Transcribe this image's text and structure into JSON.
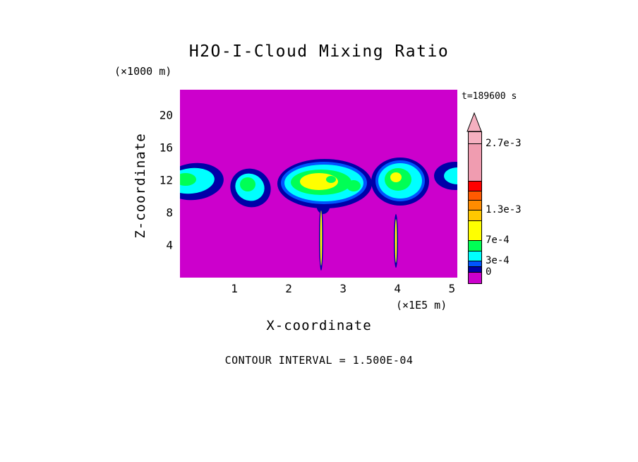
{
  "chart_data": {
    "type": "contour",
    "title": "H2O-I-Cloud Mixing Ratio",
    "time_label": "t=189600 s",
    "xlabel": "X-coordinate",
    "x_units": "(×1E5 m)",
    "ylabel": "Z-coordinate",
    "y_units": "(×1000 m)",
    "contour_interval_label": "CONTOUR INTERVAL = 1.500E-04",
    "xlim": [
      0,
      5.1
    ],
    "ylim": [
      0,
      23.1
    ],
    "x_ticks": [
      1,
      2,
      3,
      4,
      5
    ],
    "y_ticks": [
      20,
      16,
      12,
      8,
      4
    ],
    "grid": false,
    "legend_position": "right-colorbar",
    "description": "Filled contour field of cloud mixing ratio; magenta background is zero value; cloud band centered near z = 12 (x1000 m) spanning full x range, with thin precipitation streaks descending near x = 2.6 and x = 4.0 (x1E5 m)",
    "colors": {
      "background_zero": "#CC00CC",
      "navy": "#0000A8",
      "blue": "#0055FF",
      "cyan": "#00FFFF",
      "green": "#00FF55",
      "yellow": "#FFFF00",
      "pink_light": "#F5B0C0",
      "pink": "#F09CB0",
      "red": "#FF0000",
      "orange_red": "#FF5A00",
      "orange": "#FF8C00",
      "amber": "#FFC800"
    },
    "colorbar": {
      "segments": [
        {
          "color": "#F5B0C0",
          "h": 17
        },
        {
          "color": "#F09CB0",
          "h": 53
        },
        {
          "color": "#FF0000",
          "h": 14
        },
        {
          "color": "#FF5A00",
          "h": 13
        },
        {
          "color": "#FF8C00",
          "h": 14
        },
        {
          "color": "#FFC800",
          "h": 15
        },
        {
          "color": "#FFFF00",
          "h": 28
        },
        {
          "color": "#00FF55",
          "h": 15
        },
        {
          "color": "#00FFFF",
          "h": 14
        },
        {
          "color": "#0055FF",
          "h": 8
        },
        {
          "color": "#0000A8",
          "h": 8
        },
        {
          "color": "#CC00CC",
          "h": 15
        }
      ],
      "labels": [
        {
          "text": "2.7e-3",
          "after_segment": 1
        },
        {
          "text": "1.3e-3",
          "after_segment": 5
        },
        {
          "text": "7e-4",
          "after_segment": 7
        },
        {
          "text": "3e-4",
          "after_segment": 9
        },
        {
          "text": "0",
          "after_segment": 11
        }
      ]
    },
    "clouds": [
      {
        "fill": "navy",
        "cx": 20,
        "cy": 130,
        "rx": 42,
        "ry": 26,
        "rot": -6
      },
      {
        "fill": "cyan",
        "cx": 16,
        "cy": 129,
        "rx": 33,
        "ry": 18,
        "rot": -6
      },
      {
        "fill": "green",
        "cx": 8,
        "cy": 127,
        "rx": 15,
        "ry": 9,
        "rot": 0
      },
      {
        "fill": "navy",
        "cx": 100,
        "cy": 139,
        "rx": 29,
        "ry": 27,
        "rot": 25
      },
      {
        "fill": "cyan",
        "cx": 99,
        "cy": 138,
        "rx": 21,
        "ry": 19,
        "rot": 25
      },
      {
        "fill": "green",
        "cx": 96,
        "cy": 134,
        "rx": 11,
        "ry": 10,
        "rot": 0
      },
      {
        "fill": "navy",
        "cx": 205,
        "cy": 133,
        "rx": 67,
        "ry": 35,
        "rot": 0
      },
      {
        "fill": "navy",
        "cx": 203,
        "cy": 162,
        "rx": 10,
        "ry": 14,
        "rot": 0
      },
      {
        "fill": "blue",
        "cx": 204,
        "cy": 132,
        "rx": 61,
        "ry": 30,
        "rot": 0
      },
      {
        "fill": "cyan",
        "cx": 204,
        "cy": 132,
        "rx": 56,
        "ry": 26,
        "rot": 0
      },
      {
        "fill": "green",
        "cx": 200,
        "cy": 131,
        "rx": 43,
        "ry": 18,
        "rot": 0
      },
      {
        "fill": "yellow",
        "cx": 197,
        "cy": 130,
        "rx": 27,
        "ry": 12,
        "rot": 0
      },
      {
        "fill": "green",
        "cx": 214,
        "cy": 127,
        "rx": 7,
        "ry": 5,
        "rot": 0
      },
      {
        "fill": "green",
        "cx": 246,
        "cy": 136,
        "rx": 10,
        "ry": 8,
        "rot": 0
      },
      {
        "fill": "navy",
        "cx": 312,
        "cy": 130,
        "rx": 41,
        "ry": 34,
        "rot": 0
      },
      {
        "fill": "blue",
        "cx": 312,
        "cy": 129,
        "rx": 35,
        "ry": 29,
        "rot": 0
      },
      {
        "fill": "cyan",
        "cx": 312,
        "cy": 129,
        "rx": 31,
        "ry": 25,
        "rot": 0
      },
      {
        "fill": "green",
        "cx": 309,
        "cy": 127,
        "rx": 19,
        "ry": 16,
        "rot": 0
      },
      {
        "fill": "yellow",
        "cx": 306,
        "cy": 124,
        "rx": 8,
        "ry": 7,
        "rot": 0
      },
      {
        "fill": "navy",
        "cx": 390,
        "cy": 122,
        "rx": 30,
        "ry": 20,
        "rot": 0
      },
      {
        "fill": "cyan",
        "cx": 394,
        "cy": 122,
        "rx": 20,
        "ry": 12,
        "rot": 0
      },
      {
        "fill": "navy",
        "cx": 200,
        "cy": 210,
        "rx": 3,
        "ry": 46,
        "rot": 0
      },
      {
        "fill": "yellow",
        "cx": 200,
        "cy": 210,
        "rx": 1.4,
        "ry": 39,
        "rot": 0
      },
      {
        "fill": "navy",
        "cx": 306,
        "cy": 214,
        "rx": 3,
        "ry": 38,
        "rot": 0
      },
      {
        "fill": "yellow",
        "cx": 306,
        "cy": 214,
        "rx": 1.4,
        "ry": 31,
        "rot": 0
      }
    ]
  }
}
